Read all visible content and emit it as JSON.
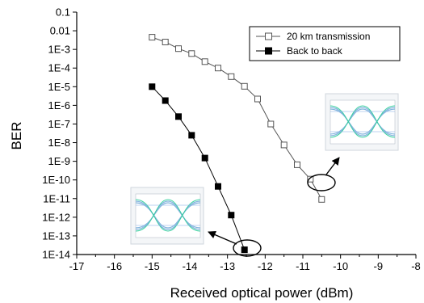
{
  "chart_data": {
    "type": "line",
    "xlabel": "Received optical power (dBm)",
    "ylabel": "BER",
    "xlim": [
      -17,
      -8
    ],
    "ylim_log10": [
      -14,
      -1
    ],
    "y_scale": "log",
    "x_ticks": [
      "-17",
      "-16",
      "-15",
      "-14",
      "-13",
      "-12",
      "-11",
      "-10",
      "-9",
      "-8"
    ],
    "y_ticks": [
      "0.1",
      "0.01",
      "1E-3",
      "1E-4",
      "1E-5",
      "1E-6",
      "1E-7",
      "1E-8",
      "1E-9",
      "1E-10",
      "1E-11",
      "1E-12",
      "1E-13",
      "1E-14"
    ],
    "grid": false,
    "legend": "top-right",
    "series": [
      {
        "name": "20 km transmission",
        "marker": "open-square",
        "color": "#555555",
        "x": [
          -15.0,
          -14.65,
          -14.3,
          -13.95,
          -13.6,
          -13.25,
          -12.9,
          -12.55,
          -12.2,
          -11.85,
          -11.5,
          -11.15,
          -10.8,
          -10.5
        ],
        "y": [
          0.0045,
          0.0025,
          0.0011,
          0.0006,
          0.00022,
          0.0001,
          3.5e-05,
          1.05e-05,
          2.2e-06,
          1e-07,
          7.5e-09,
          6.5e-10,
          1.1e-10,
          9e-12
        ]
      },
      {
        "name": "Back to back",
        "marker": "filled-square",
        "color": "#000000",
        "x": [
          -15.0,
          -14.65,
          -14.3,
          -13.95,
          -13.6,
          -13.25,
          -12.9,
          -12.55
        ],
        "y": [
          1e-05,
          1.8e-06,
          2.5e-07,
          2.5e-08,
          1.5e-09,
          4.5e-11,
          1.3e-12,
          1.8e-14
        ]
      }
    ],
    "insets": [
      {
        "name": "eye-diagram-20km"
      },
      {
        "name": "eye-diagram-back-to-back"
      }
    ]
  }
}
